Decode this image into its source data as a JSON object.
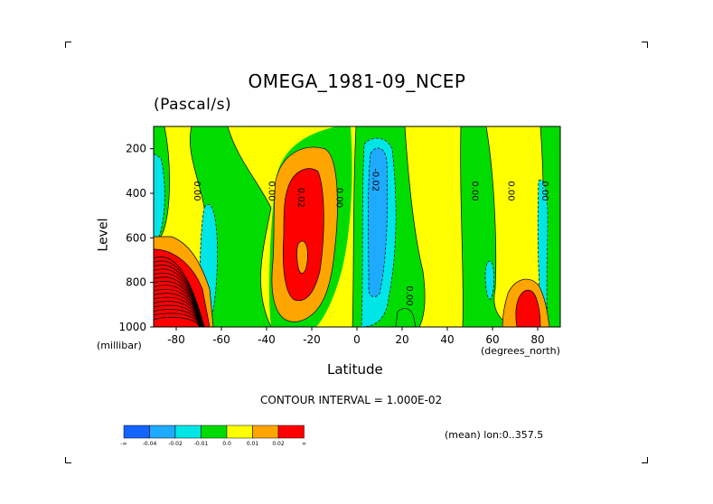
{
  "title": "OMEGA_1981-09_NCEP",
  "units": "(Pascal/s)",
  "ylabel": "Level",
  "xlabel": "Latitude",
  "y_unit": "(millibar)",
  "x_unit": "(degrees_north)",
  "contour_interval_text": "CONTOUR INTERVAL = 1.000E-02",
  "subset_text": "(mean) lon:0..357.5",
  "colors": {
    "c_min": "#1464ff",
    "c_m004": "#1eaaff",
    "c_m002": "#00e6e6",
    "c_m001": "#00dc00",
    "c_0": "#ffff00",
    "c_001": "#ffa500",
    "c_002": "#ff0000"
  },
  "chart_data": {
    "type": "heatmap",
    "title": "OMEGA_1981-09_NCEP",
    "subtitle": "(Pascal/s)",
    "xlabel": "Latitude",
    "ylabel": "Level",
    "x_unit": "(degrees_north)",
    "y_unit": "(millibar)",
    "xlim": [
      -90,
      90
    ],
    "ylim": [
      1000,
      100
    ],
    "x_ticks": [
      -80,
      -60,
      -40,
      -20,
      0,
      20,
      40,
      60,
      80
    ],
    "y_ticks": [
      200,
      400,
      600,
      800,
      1000
    ],
    "contour_labels": [
      {
        "text": "0.00",
        "lat": -72,
        "lev": 390
      },
      {
        "text": "0.00",
        "lat": -39,
        "lev": 390
      },
      {
        "text": "0.02",
        "lat": -26,
        "lev": 420
      },
      {
        "text": "0.00",
        "lat": -9,
        "lev": 420
      },
      {
        "text": "-0.02",
        "lat": 7,
        "lev": 340
      },
      {
        "text": "0.00",
        "lat": 22,
        "lev": 860
      },
      {
        "text": "0.00",
        "lat": 51,
        "lev": 390
      },
      {
        "text": "0.00",
        "lat": 67,
        "lev": 390
      },
      {
        "text": "0.00",
        "lat": 82,
        "lev": 390
      }
    ],
    "colorbar": {
      "colors": [
        "#1464ff",
        "#1eaaff",
        "#00e6e6",
        "#00dc00",
        "#ffff00",
        "#ffa500",
        "#ff0000"
      ],
      "labels": [
        "-∞",
        "-0.04",
        "-0.02",
        "-0.01",
        "0.0",
        "0.01",
        "0.02",
        "∞"
      ]
    },
    "regions": [
      {
        "sign": "positive",
        "lat_range": [
          -90,
          -75
        ],
        "lev_range": [
          600,
          1000
        ],
        "max_value": "> 0.02"
      },
      {
        "sign": "positive",
        "lat_range": [
          -35,
          -15
        ],
        "lev_range": [
          250,
          950
        ],
        "max_value": "0.02"
      },
      {
        "sign": "negative",
        "lat_range": [
          0,
          18
        ],
        "lev_range": [
          150,
          1000
        ],
        "min_value": "-0.02"
      },
      {
        "sign": "positive",
        "lat_range": [
          70,
          85
        ],
        "lev_range": [
          750,
          1000
        ],
        "max_value": "0.02"
      }
    ]
  }
}
